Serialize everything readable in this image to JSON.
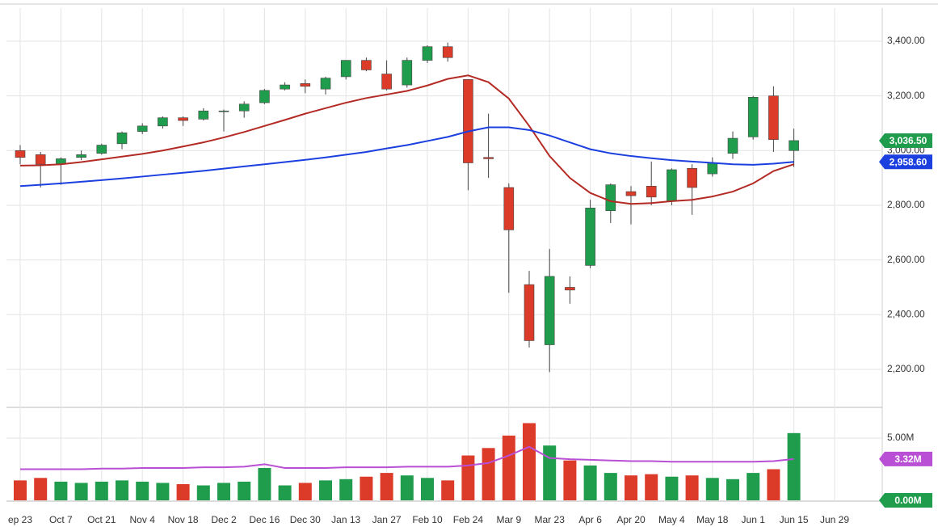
{
  "chart_data": [
    {
      "type": "candlestick",
      "categories": [
        "ep 23",
        null,
        "Oct 7",
        null,
        "Oct 21",
        null,
        "Nov 4",
        null,
        "Nov 18",
        null,
        "Dec 2",
        null,
        "Dec 16",
        null,
        "Dec 30",
        null,
        "Jan 13",
        null,
        "Jan 27",
        null,
        "Feb 10",
        null,
        "Feb 24",
        null,
        "Mar 9",
        null,
        "Mar 23",
        null,
        "Apr 6",
        null,
        "Apr 20",
        null,
        "May 4",
        null,
        "May 18",
        null,
        "Jun 1",
        null,
        "Jun 15",
        null,
        "Jun 29"
      ],
      "open": [
        3000,
        2985,
        2950,
        2975,
        2990,
        3025,
        3070,
        3090,
        3120,
        3115,
        3145,
        3145,
        3175,
        3225,
        3245,
        3225,
        3270,
        3330,
        3280,
        3240,
        3330,
        3380,
        3260,
        2975,
        2865,
        2510,
        2290,
        2500,
        2580,
        2780,
        2850,
        2870,
        2815,
        2935,
        2915,
        2990,
        3050,
        3200,
        3000,
        null,
        null
      ],
      "high": [
        3020,
        2995,
        2975,
        3000,
        3025,
        3070,
        3100,
        3125,
        3125,
        3155,
        3150,
        3180,
        3225,
        3250,
        3260,
        3270,
        3330,
        3340,
        3330,
        3340,
        3385,
        3395,
        3260,
        3135,
        2880,
        2560,
        2640,
        2540,
        2820,
        2880,
        2870,
        2960,
        2935,
        2950,
        2975,
        3070,
        3200,
        3235,
        3080,
        null,
        null
      ],
      "low": [
        2950,
        2865,
        2875,
        2965,
        2985,
        3005,
        3060,
        3080,
        3090,
        3110,
        3070,
        3120,
        3170,
        3220,
        3210,
        3205,
        3260,
        3290,
        3220,
        3230,
        3320,
        3325,
        2855,
        2900,
        2480,
        2280,
        2190,
        2440,
        2570,
        2735,
        2730,
        2800,
        2800,
        2765,
        2905,
        2970,
        3040,
        2995,
        2940,
        null,
        null
      ],
      "close": [
        2975,
        2950,
        2970,
        2985,
        3020,
        3065,
        3090,
        3120,
        3110,
        3145,
        3145,
        3170,
        3220,
        3240,
        3235,
        3265,
        3330,
        3295,
        3225,
        3330,
        3380,
        3340,
        2955,
        2970,
        2710,
        2305,
        2540,
        2490,
        2790,
        2875,
        2835,
        2830,
        2930,
        2865,
        2955,
        3045,
        3195,
        3040,
        3036.5,
        null,
        null
      ],
      "up_color": "#1f9d4c",
      "down_color": "#dc3b2a",
      "lines": [
        {
          "color": "#b42a24",
          "values": [
            2945,
            2946,
            2950,
            2958,
            2968,
            2978,
            2988,
            3000,
            3015,
            3030,
            3048,
            3068,
            3090,
            3112,
            3135,
            3155,
            3175,
            3192,
            3205,
            3218,
            3238,
            3262,
            3275,
            3250,
            3190,
            3090,
            2980,
            2900,
            2845,
            2815,
            2805,
            2808,
            2815,
            2820,
            2832,
            2850,
            2880,
            2925,
            2950,
            null,
            null
          ]
        },
        {
          "color": "#1c3fe0",
          "values": [
            2870,
            2875,
            2880,
            2886,
            2892,
            2898,
            2905,
            2912,
            2919,
            2926,
            2934,
            2942,
            2950,
            2958,
            2966,
            2975,
            2985,
            2995,
            3008,
            3020,
            3035,
            3050,
            3070,
            3085,
            3085,
            3075,
            3055,
            3030,
            3005,
            2990,
            2980,
            2972,
            2965,
            2960,
            2955,
            2950,
            2948,
            2952,
            2958.6,
            null,
            null
          ]
        }
      ],
      "ylim": [
        2064,
        3521
      ],
      "yticks": [
        {
          "value": 2200,
          "label": "2,200.00"
        },
        {
          "value": 2400,
          "label": "2,400.00"
        },
        {
          "value": 2600,
          "label": "2,600.00"
        },
        {
          "value": 2800,
          "label": "2,800.00"
        },
        {
          "value": 3000,
          "label": "3,000.00"
        },
        {
          "value": 3200,
          "label": "3,200.00"
        },
        {
          "value": 3400,
          "label": "3,400.00"
        }
      ],
      "grid": true,
      "badges": [
        {
          "value": 3036.5,
          "label": "3,036.50",
          "color": "#1f9d4c"
        },
        {
          "value": 2958.6,
          "label": "2,958.60",
          "color": "#1c3fe0"
        }
      ]
    },
    {
      "type": "volume",
      "values": [
        1.6,
        1.8,
        1.5,
        1.4,
        1.5,
        1.6,
        1.5,
        1.4,
        1.3,
        1.2,
        1.4,
        1.5,
        2.6,
        1.2,
        1.4,
        1.6,
        1.7,
        1.9,
        2.2,
        2.0,
        1.8,
        1.6,
        3.6,
        4.2,
        5.2,
        6.2,
        4.4,
        3.2,
        2.8,
        2.2,
        2.0,
        2.1,
        1.9,
        2.0,
        1.8,
        1.7,
        2.2,
        2.5,
        5.4,
        null,
        null
      ],
      "average": {
        "color": "#b94fd4",
        "values": [
          2.5,
          2.5,
          2.5,
          2.5,
          2.55,
          2.55,
          2.6,
          2.6,
          2.6,
          2.65,
          2.65,
          2.7,
          2.9,
          2.6,
          2.6,
          2.6,
          2.65,
          2.65,
          2.65,
          2.7,
          2.7,
          2.7,
          2.8,
          3.0,
          3.6,
          4.3,
          3.4,
          3.3,
          3.25,
          3.2,
          3.15,
          3.15,
          3.1,
          3.1,
          3.1,
          3.1,
          3.1,
          3.15,
          3.32,
          null,
          null
        ]
      },
      "ylim": [
        0,
        7.4
      ],
      "yticks": [
        {
          "value": 5,
          "label": "5.00M"
        }
      ],
      "grid": true,
      "badges": [
        {
          "value": 3.32,
          "label": "3.32M",
          "color": "#b94fd4"
        },
        {
          "value": 0,
          "label": "0.00M",
          "color": "#1f9d4c"
        }
      ]
    }
  ]
}
